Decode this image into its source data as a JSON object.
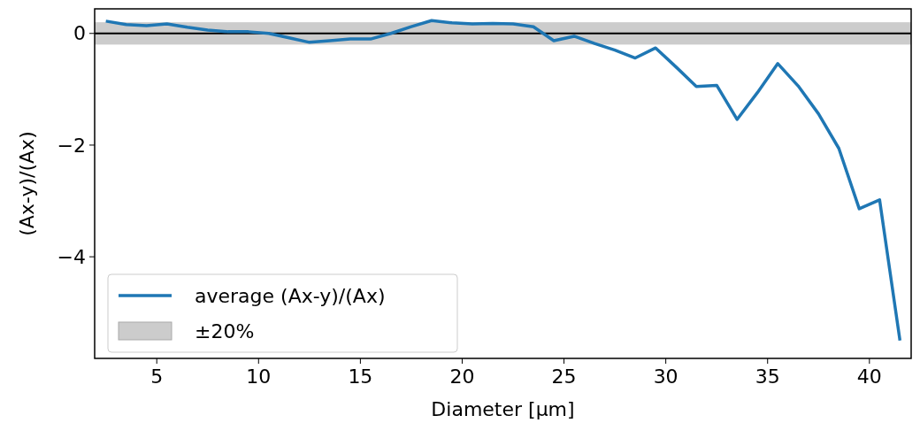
{
  "chart_data": {
    "type": "line",
    "xlabel": "Diameter [µm]",
    "ylabel": "(Ax-y)/(Ax)",
    "x": [
      2.5,
      3.5,
      4.5,
      5.5,
      6.5,
      7.5,
      8.5,
      9.5,
      10.5,
      11.5,
      12.5,
      13.5,
      14.5,
      15.5,
      16.5,
      17.5,
      18.5,
      19.5,
      20.5,
      21.5,
      22.5,
      23.5,
      24.5,
      25.5,
      26.5,
      27.5,
      28.5,
      29.5,
      30.5,
      31.5,
      32.5,
      33.5,
      34.5,
      35.5,
      36.5,
      37.5,
      38.5,
      39.5,
      40.5,
      41.5
    ],
    "series": [
      {
        "name": "average (Ax-y)/(Ax)",
        "color": "#1f77b4",
        "values": [
          0.22,
          0.16,
          0.14,
          0.17,
          0.11,
          0.06,
          0.03,
          0.03,
          0.0,
          -0.08,
          -0.16,
          -0.13,
          -0.1,
          -0.1,
          0.0,
          0.12,
          0.23,
          0.19,
          0.17,
          0.18,
          0.17,
          0.12,
          -0.13,
          -0.05,
          -0.18,
          -0.3,
          -0.44,
          -0.26,
          -0.6,
          -0.95,
          -0.93,
          -1.54,
          -1.06,
          -0.54,
          -0.94,
          -1.44,
          -2.06,
          -3.14,
          -2.98,
          -5.5
        ]
      }
    ],
    "xlim": [
      1.95,
      42.05
    ],
    "ylim": [
      -5.82,
      0.44
    ],
    "xticks": [
      5,
      10,
      15,
      20,
      25,
      30,
      35,
      40
    ],
    "yticks": [
      {
        "value": 0,
        "label": "0"
      },
      {
        "value": -2,
        "label": "−2"
      },
      {
        "value": -4,
        "label": "−4"
      }
    ],
    "ref_lines": [
      {
        "axis": "y",
        "value": 0,
        "color": "#000000"
      }
    ],
    "bands": [
      {
        "axis": "y",
        "from": -0.2,
        "to": 0.2,
        "label": "±20%",
        "color": "#cccccc"
      }
    ],
    "legend": "bottom left",
    "grid": false,
    "line_style": "solid"
  }
}
